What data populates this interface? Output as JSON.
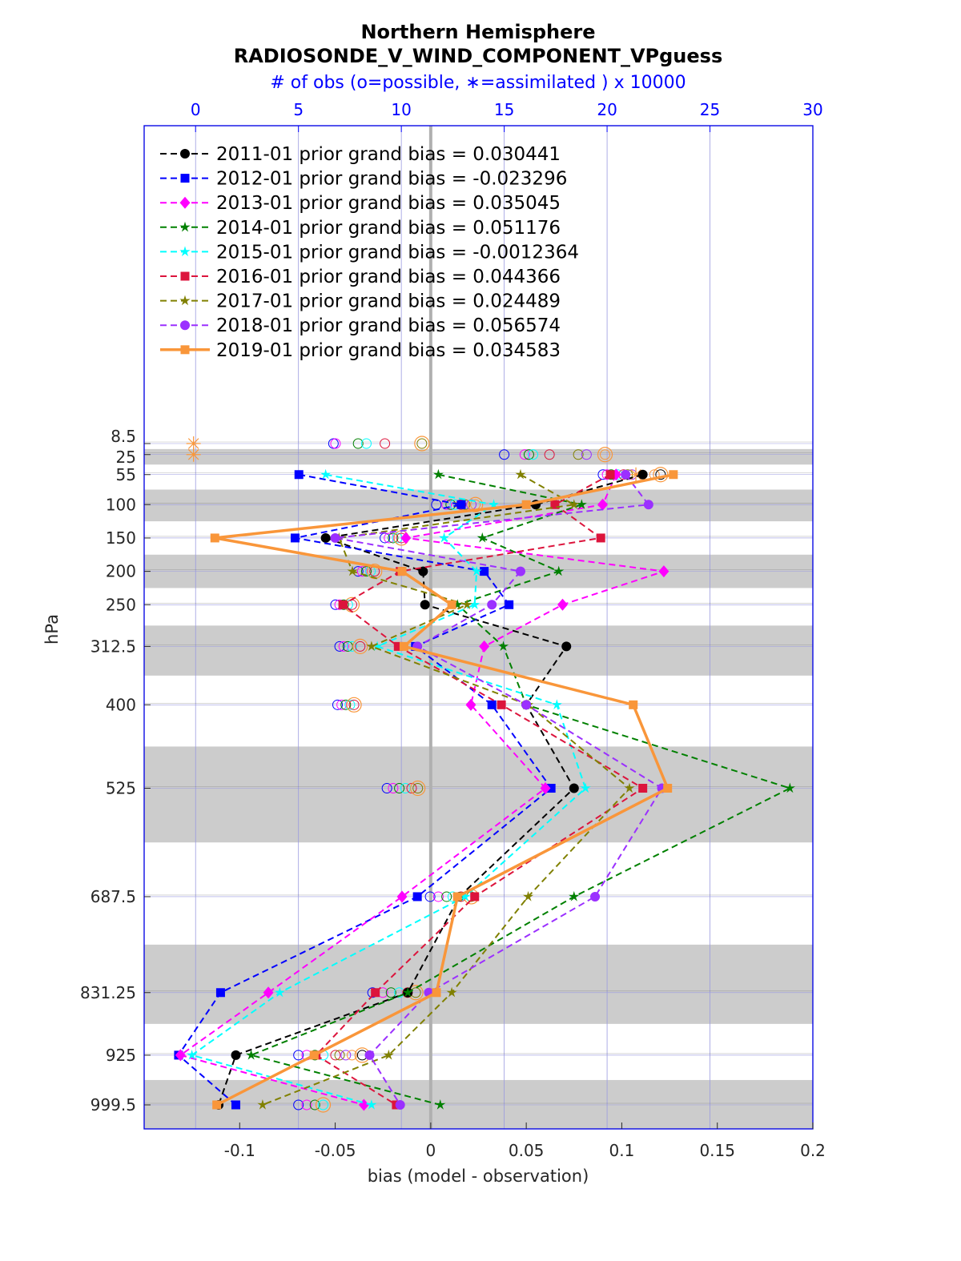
{
  "chart_data": {
    "type": "line",
    "title": "Northern Hemisphere",
    "subtitle": "RADIOSONDE_V_WIND_COMPONENT_VPguess",
    "top_axis_label": "# of obs (o=possible, ∗=assimilated ) x 10000",
    "xlabel": "bias (model - observation)",
    "ylabel": "hPa",
    "xlim": [
      -0.15,
      0.2
    ],
    "x_ticks": [
      "-0.1",
      "-0.05",
      "0",
      "0.05",
      "0.1",
      "0.15",
      "0.2"
    ],
    "top_ticks": [
      "0",
      "5",
      "10",
      "15",
      "20",
      "25",
      "30"
    ],
    "top_lim": [
      -2.5,
      30
    ],
    "levels": [
      "8.5",
      "25",
      "55",
      "100",
      "150",
      "200",
      "250",
      "312.5",
      "400",
      "525",
      "687.5",
      "831.25",
      "925",
      "999.5"
    ],
    "level_values": [
      8.5,
      25,
      55,
      100,
      150,
      200,
      250,
      312.5,
      400,
      525,
      687.5,
      831.25,
      925,
      999.5
    ],
    "legend_position": "top-left",
    "series": [
      {
        "name": "2011-01 prior grand bias = 0.030441",
        "color": "#000000",
        "marker": "circle",
        "values": [
          null,
          null,
          0.111,
          0.055,
          -0.055,
          -0.004,
          -0.003,
          0.071,
          0.05,
          0.075,
          0.015,
          -0.012,
          -0.102,
          -0.111
        ]
      },
      {
        "name": "2012-01 prior grand bias = -0.023296",
        "color": "#0000ff",
        "marker": "square",
        "values": [
          null,
          null,
          -0.069,
          0.016,
          -0.071,
          0.028,
          0.041,
          -0.008,
          0.032,
          0.063,
          -0.007,
          -0.11,
          -0.132,
          -0.102
        ]
      },
      {
        "name": "2013-01 prior grand bias = 0.035045",
        "color": "#ff00ff",
        "marker": "diamond",
        "values": [
          null,
          null,
          0.097,
          0.09,
          -0.013,
          0.122,
          0.069,
          0.028,
          0.021,
          0.06,
          -0.015,
          -0.085,
          -0.131,
          -0.035
        ]
      },
      {
        "name": "2014-01 prior grand bias = 0.051176",
        "color": "#008000",
        "marker": "star",
        "values": [
          null,
          null,
          0.004,
          0.079,
          0.027,
          0.067,
          0.014,
          0.038,
          0.05,
          0.188,
          0.075,
          -0.012,
          -0.094,
          0.005
        ]
      },
      {
        "name": "2015-01 prior grand bias = -0.0012364",
        "color": "#00ffff",
        "marker": "star",
        "values": [
          null,
          null,
          -0.055,
          0.033,
          0.007,
          0.024,
          0.023,
          -0.028,
          0.066,
          0.081,
          0.018,
          -0.079,
          -0.125,
          -0.031
        ]
      },
      {
        "name": "2016-01 prior grand bias = 0.044366",
        "color": "#dc143c",
        "marker": "square",
        "values": [
          null,
          null,
          0.094,
          0.065,
          0.089,
          -0.016,
          -0.046,
          -0.017,
          0.037,
          0.111,
          0.023,
          -0.029,
          -0.06,
          -0.018
        ]
      },
      {
        "name": "2017-01 prior grand bias = 0.024489",
        "color": "#808000",
        "marker": "star",
        "values": [
          null,
          null,
          0.047,
          0.075,
          -0.048,
          -0.041,
          0.019,
          -0.031,
          0.051,
          0.104,
          0.051,
          0.011,
          -0.022,
          -0.088
        ]
      },
      {
        "name": "2018-01 prior grand bias = 0.056574",
        "color": "#9b30ff",
        "marker": "circle",
        "values": [
          null,
          null,
          0.102,
          0.114,
          -0.05,
          0.047,
          0.032,
          -0.007,
          0.05,
          0.121,
          0.086,
          -0.001,
          -0.032,
          -0.016
        ]
      },
      {
        "name": "2019-01 prior grand bias = 0.034583",
        "color": "#f9963a",
        "marker": "square",
        "bold": true,
        "values": [
          null,
          null,
          0.127,
          0.05,
          -0.113,
          -0.015,
          0.011,
          -0.014,
          0.106,
          0.124,
          0.014,
          0.003,
          -0.061,
          -0.112
        ]
      }
    ],
    "obs_possible": [
      {
        "level": "8.5",
        "values": [
          6.7,
          6.8,
          7.9,
          8.3,
          9.2,
          11.0
        ]
      },
      {
        "level": "25",
        "values": [
          15.0,
          16.0,
          16.2,
          16.4,
          17.2,
          18.6,
          19.0,
          19.9
        ]
      },
      {
        "level": "55",
        "values": [
          19.8,
          20.0,
          20.2,
          20.5,
          20.8,
          21.0,
          21.2,
          22.3,
          22.6
        ]
      },
      {
        "level": "100",
        "values": [
          11.7,
          12.2,
          12.4,
          12.6,
          12.9,
          13.1,
          13.4,
          13.6
        ]
      },
      {
        "level": "150",
        "values": [
          9.2,
          9.4,
          9.6,
          9.8,
          10.0
        ]
      },
      {
        "level": "200",
        "values": [
          7.9,
          8.1,
          8.3,
          8.5,
          8.7
        ]
      },
      {
        "level": "250",
        "values": [
          6.8,
          7.0,
          7.2,
          7.4,
          7.6
        ]
      },
      {
        "level": "312.5",
        "values": [
          7.0,
          7.2,
          7.4,
          7.6,
          8.0
        ]
      },
      {
        "level": "400",
        "values": [
          6.9,
          7.1,
          7.3,
          7.5,
          7.7
        ]
      },
      {
        "level": "525",
        "values": [
          9.3,
          9.6,
          9.9,
          10.2,
          10.5,
          10.8
        ]
      },
      {
        "level": "687.5",
        "values": [
          11.4,
          11.8,
          12.2,
          12.5,
          12.9,
          13.4
        ]
      },
      {
        "level": "831.25",
        "values": [
          8.6,
          9.1,
          9.5,
          9.9,
          10.3,
          10.7
        ]
      },
      {
        "level": "925",
        "values": [
          5.0,
          5.4,
          5.8,
          6.2,
          6.8,
          7.0,
          7.3,
          7.6,
          8.1
        ]
      },
      {
        "level": "999.5",
        "values": [
          5.0,
          5.4,
          5.8,
          6.2
        ]
      }
    ],
    "obs_assimilated": [
      {
        "level": "8.5",
        "value": -0.1
      },
      {
        "level": "25",
        "value": -0.1
      },
      {
        "level": "55",
        "value": 21.4
      }
    ]
  }
}
